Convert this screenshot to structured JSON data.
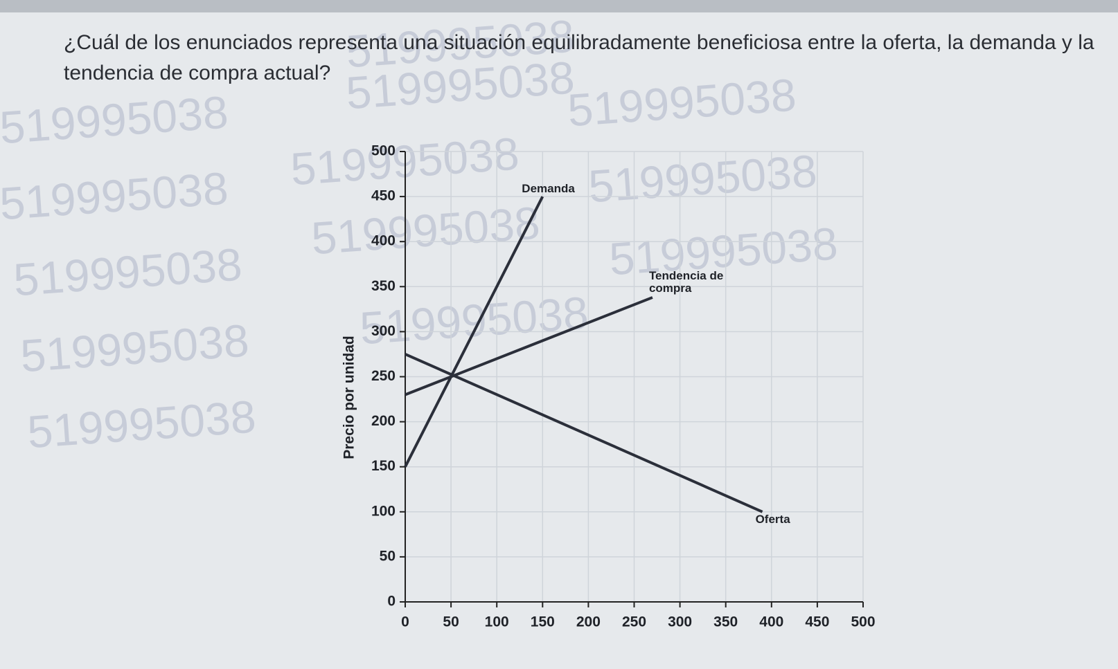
{
  "question": "¿Cuál de los enunciados representa una situación equilibradamente beneficiosa entre la oferta, la demanda y la tendencia de compra actual?",
  "watermark": "519995038",
  "chart_data": {
    "type": "line",
    "y_label": "Precio por unidad",
    "xlim": [
      0,
      500
    ],
    "xticks": [
      0,
      50,
      100,
      150,
      200,
      250,
      300,
      350,
      400,
      450,
      500
    ],
    "ylim": [
      0,
      500
    ],
    "yticks": [
      0,
      50,
      100,
      150,
      200,
      250,
      300,
      350,
      400,
      450,
      500
    ],
    "grid": true,
    "color": "#2b2f3a",
    "series": [
      {
        "name": "Demanda",
        "x": [
          0,
          150
        ],
        "values": [
          150,
          450
        ]
      },
      {
        "name": "Tendencia de compra",
        "x": [
          0,
          270
        ],
        "values": [
          230,
          338
        ]
      },
      {
        "name": "Oferta",
        "x": [
          0,
          390
        ],
        "values": [
          275,
          100
        ]
      }
    ]
  }
}
